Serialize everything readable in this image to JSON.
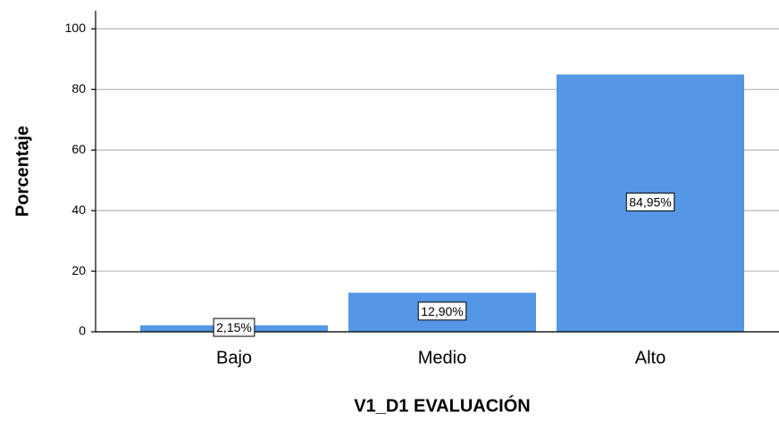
{
  "chart_data": {
    "type": "bar",
    "x_label": "V1_D1 EVALUACIÓN",
    "y_label": "Porcentaje",
    "categories": [
      "Bajo",
      "Medio",
      "Alto"
    ],
    "values": [
      2.15,
      12.9,
      84.95
    ],
    "value_labels": [
      "2,15%",
      "12,90%",
      "84,95%"
    ],
    "color": "#5596e6",
    "ylim": [
      0,
      106
    ],
    "yticks": [
      0,
      20,
      40,
      60,
      80,
      100
    ],
    "grid": true
  }
}
